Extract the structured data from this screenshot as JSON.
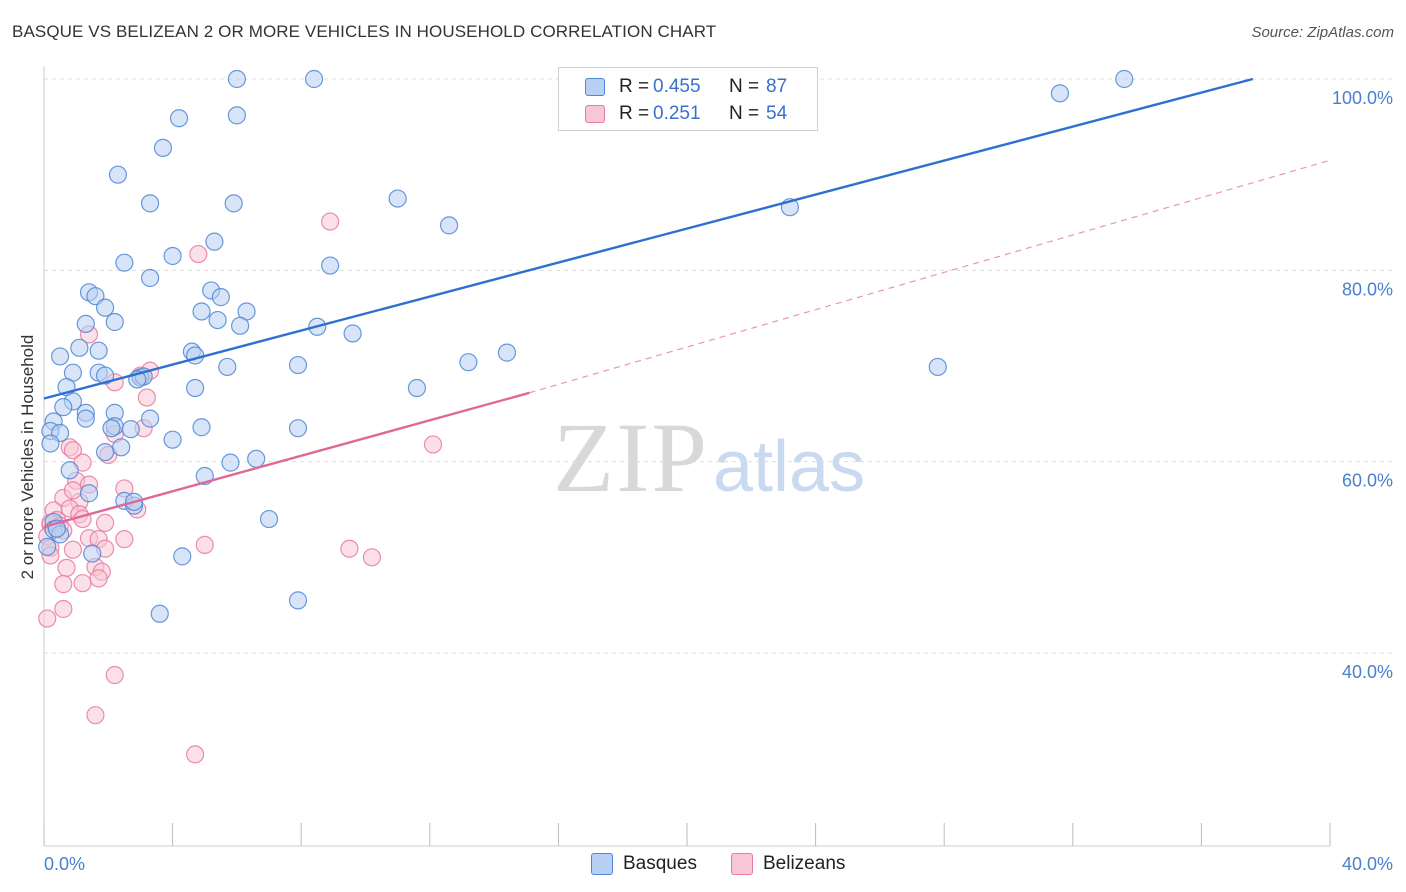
{
  "header": {
    "title": "BASQUE VS BELIZEAN 2 OR MORE VEHICLES IN HOUSEHOLD CORRELATION CHART",
    "source": "Source: ZipAtlas.com"
  },
  "watermark": {
    "zip": "ZIP",
    "atlas": "atlas"
  },
  "legend": {
    "rows": [
      {
        "r_label": "R =",
        "r_value": "0.455",
        "n_label": "N =",
        "n_value": "87"
      },
      {
        "r_label": "R =",
        "r_value": "0.251",
        "n_label": "N =",
        "n_value": "54"
      }
    ]
  },
  "bottom_legend": {
    "basques": "Basques",
    "belizeans": "Belizeans"
  },
  "colors": {
    "basque_fill": "#b8d0f3",
    "basque_stroke": "#4f86d6",
    "basque_line": "#2f6fcf",
    "belizean_fill": "#f8c6d5",
    "belizean_stroke": "#e87a9e",
    "belizean_line": "#e06896",
    "tick_text": "#4a7fd0",
    "grid": "#dddddd"
  },
  "chart_data": {
    "type": "scatter",
    "title": "BASQUE VS BELIZEAN 2 OR MORE VEHICLES IN HOUSEHOLD CORRELATION CHART",
    "xlabel": "",
    "ylabel": "2 or more Vehicles in Household",
    "xlim": [
      0,
      40
    ],
    "ylim": [
      18,
      101
    ],
    "x_tick_labels": [
      "0.0%",
      "40.0%"
    ],
    "y_ticks": [
      40,
      60,
      80,
      100
    ],
    "y_tick_labels": [
      "40.0%",
      "60.0%",
      "80.0%",
      "100.0%"
    ],
    "grid": true,
    "legend_position": "top-center",
    "series": [
      {
        "name": "Basques",
        "R": 0.455,
        "N": 87,
        "trend": {
          "x": [
            0.0,
            37.6
          ],
          "y": [
            66.6,
            100.0
          ],
          "style": "solid"
        },
        "points": [
          [
            6.0,
            100.0
          ],
          [
            8.4,
            100.0
          ],
          [
            20.7,
            100.0
          ],
          [
            33.6,
            100.0
          ],
          [
            31.6,
            98.5
          ],
          [
            4.2,
            95.9
          ],
          [
            6.0,
            96.2
          ],
          [
            3.7,
            92.8
          ],
          [
            2.3,
            90.0
          ],
          [
            3.3,
            87.0
          ],
          [
            5.9,
            87.0
          ],
          [
            11.0,
            87.5
          ],
          [
            23.2,
            86.6
          ],
          [
            5.3,
            83.0
          ],
          [
            12.6,
            84.7
          ],
          [
            4.0,
            81.5
          ],
          [
            2.5,
            80.8
          ],
          [
            8.9,
            80.5
          ],
          [
            3.3,
            79.2
          ],
          [
            1.4,
            77.7
          ],
          [
            1.6,
            77.3
          ],
          [
            5.2,
            77.9
          ],
          [
            5.5,
            77.2
          ],
          [
            1.9,
            76.1
          ],
          [
            4.9,
            75.7
          ],
          [
            6.3,
            75.7
          ],
          [
            2.2,
            74.6
          ],
          [
            1.3,
            74.4
          ],
          [
            5.4,
            74.8
          ],
          [
            6.1,
            74.2
          ],
          [
            8.5,
            74.1
          ],
          [
            9.6,
            73.4
          ],
          [
            1.1,
            71.9
          ],
          [
            0.5,
            71.0
          ],
          [
            1.7,
            71.6
          ],
          [
            4.6,
            71.5
          ],
          [
            4.7,
            71.1
          ],
          [
            14.4,
            71.4
          ],
          [
            13.2,
            70.4
          ],
          [
            7.9,
            70.1
          ],
          [
            5.7,
            69.9
          ],
          [
            27.8,
            69.9
          ],
          [
            0.9,
            69.3
          ],
          [
            1.7,
            69.3
          ],
          [
            1.9,
            69.0
          ],
          [
            3.0,
            68.8
          ],
          [
            3.1,
            68.9
          ],
          [
            2.9,
            68.6
          ],
          [
            0.7,
            67.8
          ],
          [
            4.7,
            67.7
          ],
          [
            11.6,
            67.7
          ],
          [
            0.9,
            66.3
          ],
          [
            0.6,
            65.7
          ],
          [
            1.3,
            65.1
          ],
          [
            2.2,
            65.1
          ],
          [
            1.3,
            64.5
          ],
          [
            0.3,
            64.2
          ],
          [
            3.3,
            64.5
          ],
          [
            2.2,
            63.7
          ],
          [
            2.7,
            63.4
          ],
          [
            4.9,
            63.6
          ],
          [
            7.9,
            63.5
          ],
          [
            0.2,
            63.2
          ],
          [
            0.5,
            63.0
          ],
          [
            2.1,
            63.5
          ],
          [
            0.2,
            61.9
          ],
          [
            4.0,
            62.3
          ],
          [
            1.9,
            61.0
          ],
          [
            2.4,
            61.5
          ],
          [
            6.6,
            60.3
          ],
          [
            5.8,
            59.9
          ],
          [
            0.8,
            59.1
          ],
          [
            5.0,
            58.5
          ],
          [
            1.4,
            56.7
          ],
          [
            2.5,
            55.9
          ],
          [
            2.8,
            55.4
          ],
          [
            7.0,
            54.0
          ],
          [
            0.3,
            53.7
          ],
          [
            0.3,
            52.9
          ],
          [
            1.5,
            50.4
          ],
          [
            4.3,
            50.1
          ],
          [
            0.1,
            51.1
          ],
          [
            3.6,
            44.1
          ],
          [
            7.9,
            45.5
          ],
          [
            0.5,
            52.4
          ],
          [
            0.4,
            53.0
          ],
          [
            2.8,
            55.8
          ]
        ]
      },
      {
        "name": "Belizeans",
        "R": 0.251,
        "N": 54,
        "trend": {
          "x": [
            0.0,
            15.1
          ],
          "y": [
            53.2,
            67.2
          ],
          "style": "solid",
          "extension": {
            "x": [
              15.1,
              40.0
            ],
            "y": [
              67.2,
              91.5
            ],
            "style": "dashed"
          }
        },
        "points": [
          [
            8.9,
            85.1
          ],
          [
            4.8,
            81.7
          ],
          [
            1.4,
            73.3
          ],
          [
            3.0,
            69.0
          ],
          [
            3.3,
            69.5
          ],
          [
            2.2,
            68.3
          ],
          [
            3.2,
            66.7
          ],
          [
            2.2,
            62.9
          ],
          [
            3.1,
            63.5
          ],
          [
            12.1,
            61.8
          ],
          [
            0.8,
            61.5
          ],
          [
            0.9,
            61.2
          ],
          [
            2.0,
            60.7
          ],
          [
            1.2,
            59.9
          ],
          [
            1.0,
            58.0
          ],
          [
            1.4,
            57.6
          ],
          [
            2.5,
            57.2
          ],
          [
            0.6,
            56.2
          ],
          [
            1.1,
            55.8
          ],
          [
            0.3,
            54.9
          ],
          [
            0.8,
            55.1
          ],
          [
            1.1,
            54.5
          ],
          [
            0.4,
            53.9
          ],
          [
            1.9,
            53.6
          ],
          [
            0.2,
            53.4
          ],
          [
            0.2,
            53.6
          ],
          [
            0.5,
            53.3
          ],
          [
            0.4,
            53.0
          ],
          [
            1.2,
            54.0
          ],
          [
            0.1,
            52.2
          ],
          [
            0.6,
            52.8
          ],
          [
            1.4,
            52.0
          ],
          [
            1.7,
            51.9
          ],
          [
            2.5,
            51.9
          ],
          [
            5.0,
            51.3
          ],
          [
            0.2,
            51.0
          ],
          [
            0.9,
            50.8
          ],
          [
            1.9,
            50.9
          ],
          [
            9.5,
            50.9
          ],
          [
            10.2,
            50.0
          ],
          [
            0.2,
            50.2
          ],
          [
            1.6,
            49.0
          ],
          [
            0.7,
            48.9
          ],
          [
            1.8,
            48.5
          ],
          [
            0.6,
            47.2
          ],
          [
            1.2,
            47.3
          ],
          [
            1.7,
            47.8
          ],
          [
            0.6,
            44.6
          ],
          [
            0.1,
            43.6
          ],
          [
            2.2,
            37.7
          ],
          [
            1.6,
            33.5
          ],
          [
            4.7,
            29.4
          ],
          [
            2.9,
            55.0
          ],
          [
            0.9,
            57.0
          ]
        ]
      }
    ]
  }
}
